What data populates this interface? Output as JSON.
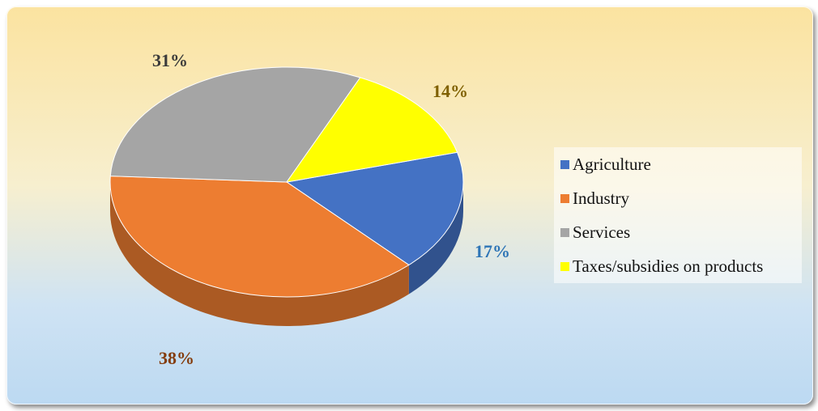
{
  "chart_data": {
    "type": "pie",
    "slices": [
      {
        "label": "Agriculture",
        "value": 17,
        "label_text": "17%",
        "color": "#4472c4",
        "label_color": "#2e75b6"
      },
      {
        "label": "Industry",
        "value": 38,
        "label_text": "38%",
        "color": "#ed7d31",
        "label_color": "#843c0c"
      },
      {
        "label": "Services",
        "value": 31,
        "label_text": "31%",
        "color": "#a5a5a5",
        "label_color": "#3a3a3a"
      },
      {
        "label": "Taxes/subsidies on products",
        "value": 14,
        "label_text": "14%",
        "color": "#ffff00",
        "label_color": "#7f6000"
      }
    ],
    "legend_position": "right",
    "style": "3d"
  }
}
